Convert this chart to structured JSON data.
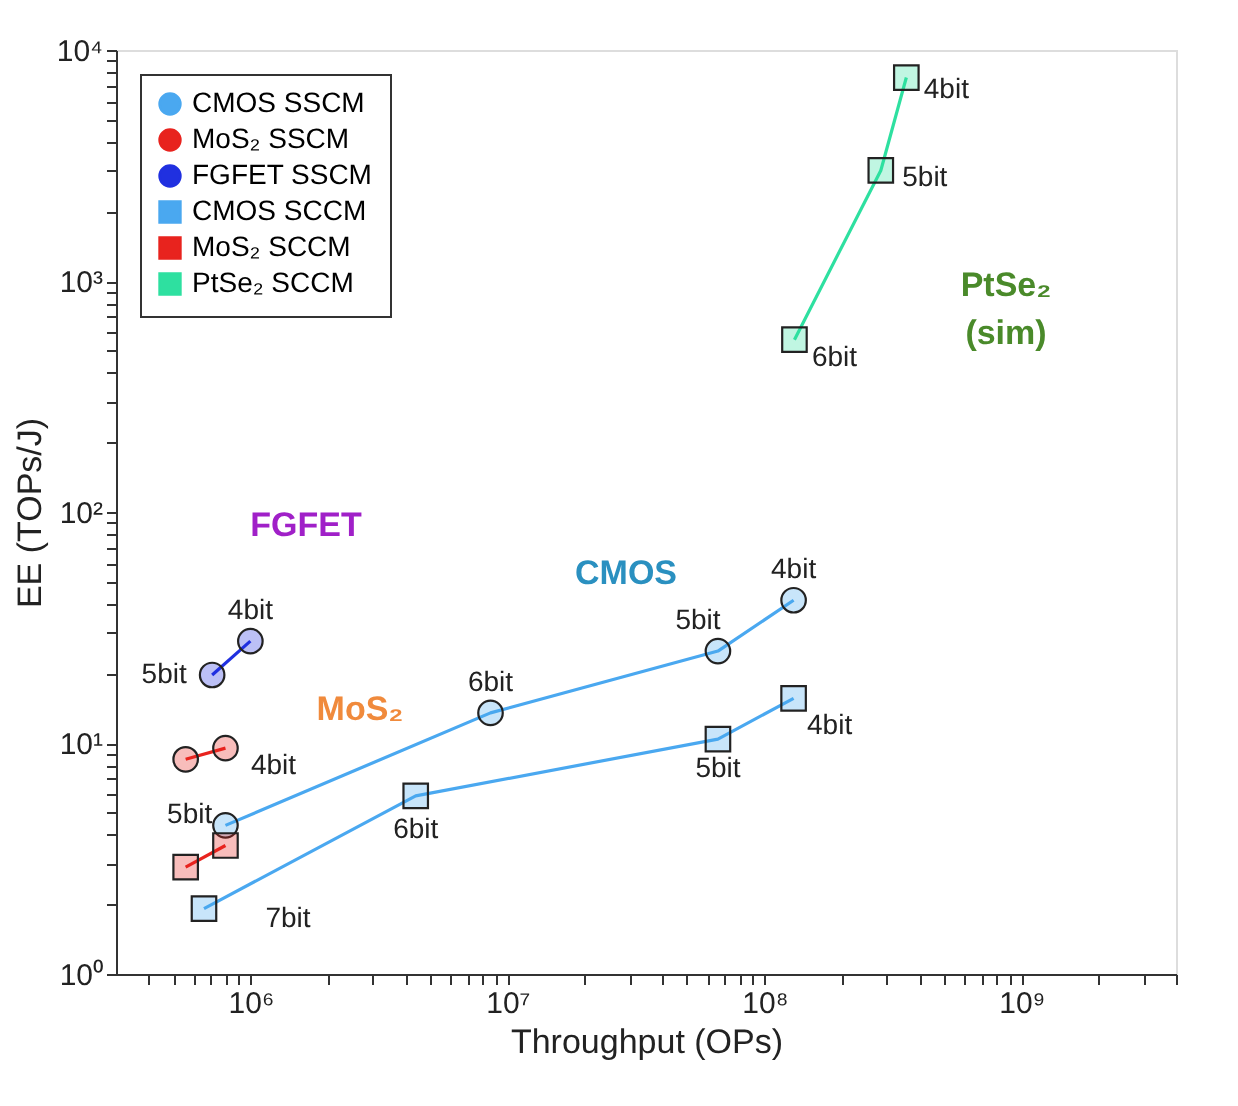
{
  "chart_data": {
    "type": "line",
    "log": "xy",
    "grid": false,
    "legend": "top left",
    "xlabel": "Throughput (OPs)",
    "ylabel": "EE (TOPs/J)",
    "xlim": [
      300000,
      4000000000
    ],
    "ylim": [
      1,
      10000
    ],
    "xticks": [
      {
        "value": 400000,
        "label": null
      },
      {
        "value": 500000,
        "label": null
      },
      {
        "value": 600000,
        "label": null
      },
      {
        "value": 700000,
        "label": null
      },
      {
        "value": 800000,
        "label": null
      },
      {
        "value": 900000,
        "label": null
      },
      {
        "value": 1000000,
        "label": "10⁶"
      },
      {
        "value": 2000000,
        "label": null
      },
      {
        "value": 3000000,
        "label": null
      },
      {
        "value": 4000000,
        "label": null
      },
      {
        "value": 5000000,
        "label": null
      },
      {
        "value": 6000000,
        "label": null
      },
      {
        "value": 7000000,
        "label": null
      },
      {
        "value": 8000000,
        "label": null
      },
      {
        "value": 9000000,
        "label": null
      },
      {
        "value": 10000000,
        "label": "10⁷"
      },
      {
        "value": 20000000,
        "label": null
      },
      {
        "value": 30000000,
        "label": null
      },
      {
        "value": 40000000,
        "label": null
      },
      {
        "value": 50000000,
        "label": null
      },
      {
        "value": 60000000,
        "label": null
      },
      {
        "value": 70000000,
        "label": null
      },
      {
        "value": 80000000,
        "label": null
      },
      {
        "value": 90000000,
        "label": null
      },
      {
        "value": 100000000,
        "label": "10⁸"
      },
      {
        "value": 200000000,
        "label": null
      },
      {
        "value": 300000000,
        "label": null
      },
      {
        "value": 400000000,
        "label": null
      },
      {
        "value": 500000000,
        "label": null
      },
      {
        "value": 600000000,
        "label": null
      },
      {
        "value": 700000000,
        "label": null
      },
      {
        "value": 800000000,
        "label": null
      },
      {
        "value": 900000000,
        "label": null
      },
      {
        "value": 1000000000,
        "label": "10⁹"
      },
      {
        "value": 2000000000,
        "label": null
      },
      {
        "value": 3000000000,
        "label": null
      },
      {
        "value": 4000000000,
        "label": null
      }
    ],
    "yticks": [
      {
        "value": 1,
        "label": "10⁰"
      },
      {
        "value": 2,
        "label": null
      },
      {
        "value": 3,
        "label": null
      },
      {
        "value": 4,
        "label": null
      },
      {
        "value": 5,
        "label": null
      },
      {
        "value": 6,
        "label": null
      },
      {
        "value": 7,
        "label": null
      },
      {
        "value": 8,
        "label": null
      },
      {
        "value": 9,
        "label": null
      },
      {
        "value": 10,
        "label": "10¹"
      },
      {
        "value": 20,
        "label": null
      },
      {
        "value": 30,
        "label": null
      },
      {
        "value": 40,
        "label": null
      },
      {
        "value": 50,
        "label": null
      },
      {
        "value": 60,
        "label": null
      },
      {
        "value": 70,
        "label": null
      },
      {
        "value": 80,
        "label": null
      },
      {
        "value": 90,
        "label": null
      },
      {
        "value": 100,
        "label": "10²"
      },
      {
        "value": 200,
        "label": null
      },
      {
        "value": 300,
        "label": null
      },
      {
        "value": 400,
        "label": null
      },
      {
        "value": 500,
        "label": null
      },
      {
        "value": 600,
        "label": null
      },
      {
        "value": 700,
        "label": null
      },
      {
        "value": 800,
        "label": null
      },
      {
        "value": 900,
        "label": null
      },
      {
        "value": 1000,
        "label": "10³"
      },
      {
        "value": 2000,
        "label": null
      },
      {
        "value": 3000,
        "label": null
      },
      {
        "value": 4000,
        "label": null
      },
      {
        "value": 5000,
        "label": null
      },
      {
        "value": 6000,
        "label": null
      },
      {
        "value": 7000,
        "label": null
      },
      {
        "value": 8000,
        "label": null
      },
      {
        "value": 9000,
        "label": null
      },
      {
        "value": 10000,
        "label": "10⁴"
      }
    ],
    "series": [
      {
        "name": "CMOS SSCM",
        "color": "#4aa8f0",
        "marker": "circle",
        "x": [
          800000,
          8600000,
          66000000,
          130000000
        ],
        "values": [
          4.4,
          13.5,
          25,
          41.5
        ]
      },
      {
        "name": "MoS₂ SSCM",
        "color": "#e8231e",
        "marker": "circle",
        "x": [
          560000,
          800000
        ],
        "values": [
          8.5,
          9.5
        ]
      },
      {
        "name": "FGFET SSCM",
        "color": "#2030e0",
        "marker": "circle",
        "x": [
          710000,
          1000000
        ],
        "values": [
          19.7,
          27.6
        ]
      },
      {
        "name": "CMOS SCCM",
        "color": "#4aa8f0",
        "marker": "square",
        "x": [
          660000,
          4400000,
          66000000,
          130000000
        ],
        "values": [
          1.92,
          5.9,
          10.4,
          15.6
        ]
      },
      {
        "name": "MoS₂ SCCM",
        "color": "#e8231e",
        "marker": "square",
        "x": [
          560000,
          800000
        ],
        "values": [
          2.9,
          3.6
        ]
      },
      {
        "name": "PtSe₂ SCCM",
        "color": "#2ee0a0",
        "marker": "square",
        "x": [
          131000000,
          284000000,
          357000000
        ],
        "values": [
          557,
          3010,
          7600
        ]
      }
    ],
    "annotations": [
      {
        "text": "4bit",
        "x": 130000000,
        "y": 41.5
      },
      {
        "text": "5bit",
        "x": 66000000,
        "y": 25
      },
      {
        "text": "6bit",
        "x": 8600000,
        "y": 13.5
      },
      {
        "text": "4bit",
        "x": 130000000,
        "y": 15.6
      },
      {
        "text": "5bit",
        "x": 66000000,
        "y": 10.4
      },
      {
        "text": "6bit",
        "x": 4400000,
        "y": 5.9
      },
      {
        "text": "7bit",
        "x": 660000,
        "y": 1.92
      },
      {
        "text": "4bit",
        "x": 1000000,
        "y": 27.6
      },
      {
        "text": "5bit",
        "x": 710000,
        "y": 19.7
      },
      {
        "text": "5bit",
        "x": 560000,
        "y": 8.5
      },
      {
        "text": "4bit",
        "x": 800000,
        "y": 9.5
      },
      {
        "text": "4bit",
        "x": 357000000,
        "y": 7600
      },
      {
        "text": "5bit",
        "x": 284000000,
        "y": 3010
      },
      {
        "text": "6bit",
        "x": 131000000,
        "y": 557
      },
      "FGFET",
      "MoS₂",
      "CMOS",
      "PtSe₂ (sim)"
    ]
  }
}
